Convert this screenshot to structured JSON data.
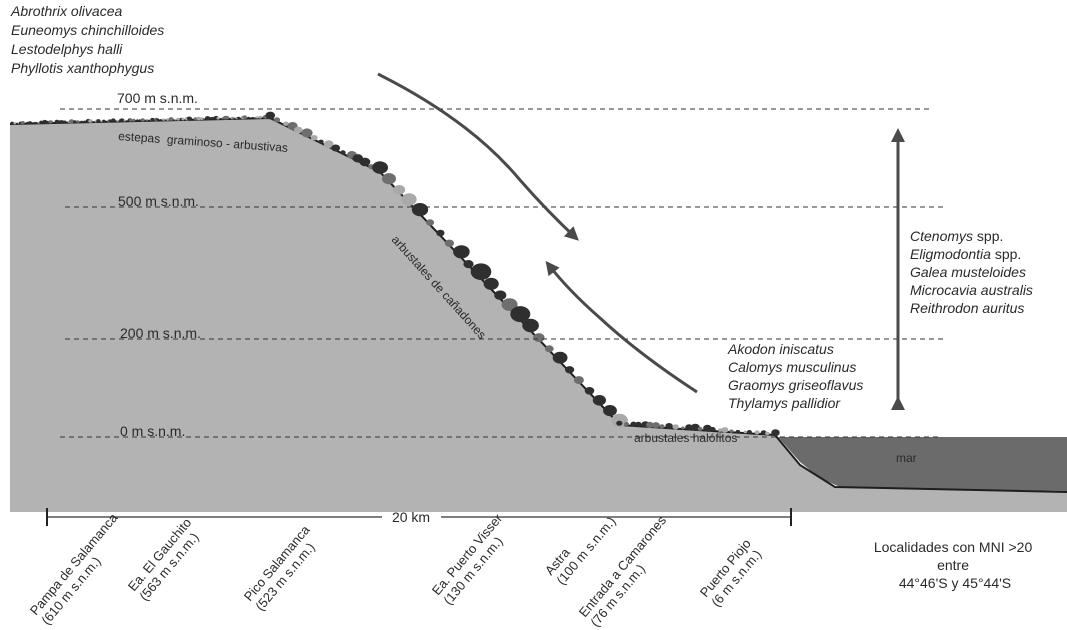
{
  "species_groups": {
    "top_left": [
      "Abrothrix olivacea",
      "Euneomys chinchilloides",
      "Lestodelphys halli",
      "Phyllotis xanthophygus"
    ],
    "right": [
      {
        "italic": "Ctenomys",
        "suffix": " spp."
      },
      {
        "italic": "Eligmodontia",
        "suffix": " spp."
      },
      {
        "italic": "Galea musteloides",
        "suffix": ""
      },
      {
        "italic": "Microcavia australis",
        "suffix": ""
      },
      {
        "italic": "Reithrodon auritus",
        "suffix": ""
      }
    ],
    "middle": [
      "Akodon iniscatus",
      "Calomys musculinus",
      "Graomys griseoflavus",
      "Thylamys pallidior"
    ]
  },
  "elevations": {
    "e700": "700 m s.n.m.",
    "e500": "500 m s.n.m.",
    "e200": "200 m s.n.m.",
    "e0": "0 m s.n.m."
  },
  "vegetation": {
    "steppe": "estepas  graminoso - arbustivas",
    "canyon": "arbustales de cañadones",
    "halophyte": "arbustales halófitos"
  },
  "sea_label": "mar",
  "scale_label": "20 km",
  "localities": [
    {
      "name": "Pampa de Salamanca",
      "elev": "(610 m s.n.m.)"
    },
    {
      "name": "Ea. El Gauchito",
      "elev": "(563 m s.n.m.)"
    },
    {
      "name": "Pico Salamanca",
      "elev": "(523 m s.n.m.)"
    },
    {
      "name": "Ea. Puerto Visser",
      "elev": "(130 m s.n.m.)"
    },
    {
      "name": "Astra",
      "elev": "(100 m s.n.m.)"
    },
    {
      "name": "Entrada a Camarones",
      "elev": "(76 m s.n.m.)"
    },
    {
      "name": "Puerto Piojo",
      "elev": "(6 m s.n.m.)"
    }
  ],
  "note": [
    "Localidades con MNI >20",
    "entre",
    "44°46'S y 45°44'S"
  ],
  "colors": {
    "terrain": "#b3b3b3",
    "sea": "#6b6b6b",
    "vegetation_dark": "#2f2f2f",
    "vegetation_mid": "#6e6e6e",
    "vegetation_light": "#a9a9a9",
    "arrow": "#4a4a4a"
  }
}
